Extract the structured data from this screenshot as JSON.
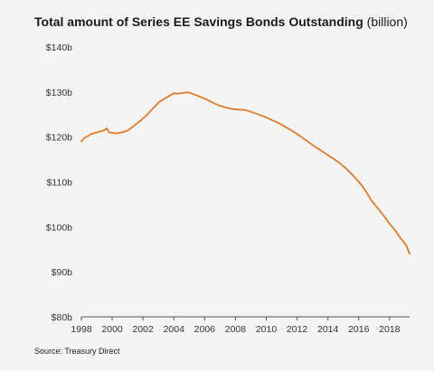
{
  "chart_data": {
    "type": "line",
    "title": "Total amount of Series EE Savings Bonds Outstanding",
    "title_unit": "(billion)",
    "xlabel": "",
    "ylabel": "",
    "xlim": [
      1998,
      2019.3
    ],
    "ylim": [
      80,
      140
    ],
    "y_ticks": [
      80,
      90,
      100,
      110,
      120,
      130,
      140
    ],
    "y_tick_labels": [
      "$80b",
      "$90b",
      "$100b",
      "$110b",
      "$120b",
      "$130b",
      "$140b"
    ],
    "x_ticks": [
      1998,
      2000,
      2002,
      2004,
      2006,
      2008,
      2010,
      2012,
      2014,
      2016,
      2018
    ],
    "x_tick_labels": [
      "1998",
      "2000",
      "2002",
      "2004",
      "2006",
      "2008",
      "2010",
      "2012",
      "2014",
      "2016",
      "2018"
    ],
    "grid": false,
    "line_color": "#e07b2a",
    "series": [
      {
        "x": [
          1998.0,
          1998.2,
          1998.4,
          1998.6,
          1998.9,
          1999.2,
          1999.5,
          1999.65,
          1999.8,
          2000.0,
          2000.3,
          2000.6,
          2001.0,
          2001.4,
          2001.8,
          2002.2,
          2002.5,
          2002.8,
          2003.1,
          2003.4,
          2003.7,
          2004.0,
          2004.3,
          2004.6,
          2004.9,
          2005.2,
          2005.5,
          2005.8,
          2006.2,
          2006.6,
          2007.0,
          2007.4,
          2007.8,
          2008.2,
          2008.6,
          2009.0,
          2009.4,
          2009.8,
          2010.2,
          2010.6,
          2011.0,
          2011.4,
          2011.8,
          2012.2,
          2012.6,
          2013.0,
          2013.4,
          2013.8,
          2014.2,
          2014.6,
          2015.0,
          2015.3,
          2015.6,
          2015.9,
          2016.2,
          2016.5,
          2016.8,
          2017.1,
          2017.4,
          2017.7,
          2018.0,
          2018.3,
          2018.6,
          2018.9,
          2019.1,
          2019.3
        ],
        "y": [
          119.0,
          119.8,
          120.1,
          120.6,
          120.9,
          121.2,
          121.5,
          121.9,
          121.0,
          120.9,
          120.8,
          121.0,
          121.4,
          122.4,
          123.5,
          124.7,
          125.8,
          126.9,
          127.9,
          128.5,
          129.1,
          129.7,
          129.6,
          129.8,
          129.9,
          129.6,
          129.2,
          128.8,
          128.2,
          127.5,
          126.9,
          126.5,
          126.2,
          126.1,
          126.0,
          125.6,
          125.1,
          124.6,
          124.0,
          123.4,
          122.7,
          121.9,
          121.1,
          120.2,
          119.2,
          118.2,
          117.3,
          116.4,
          115.5,
          114.6,
          113.5,
          112.6,
          111.5,
          110.4,
          109.2,
          107.7,
          106.0,
          104.7,
          103.5,
          102.1,
          100.7,
          99.5,
          98.0,
          96.7,
          95.8,
          94.0
        ]
      }
    ],
    "source": "Source: Treasury Direct"
  }
}
